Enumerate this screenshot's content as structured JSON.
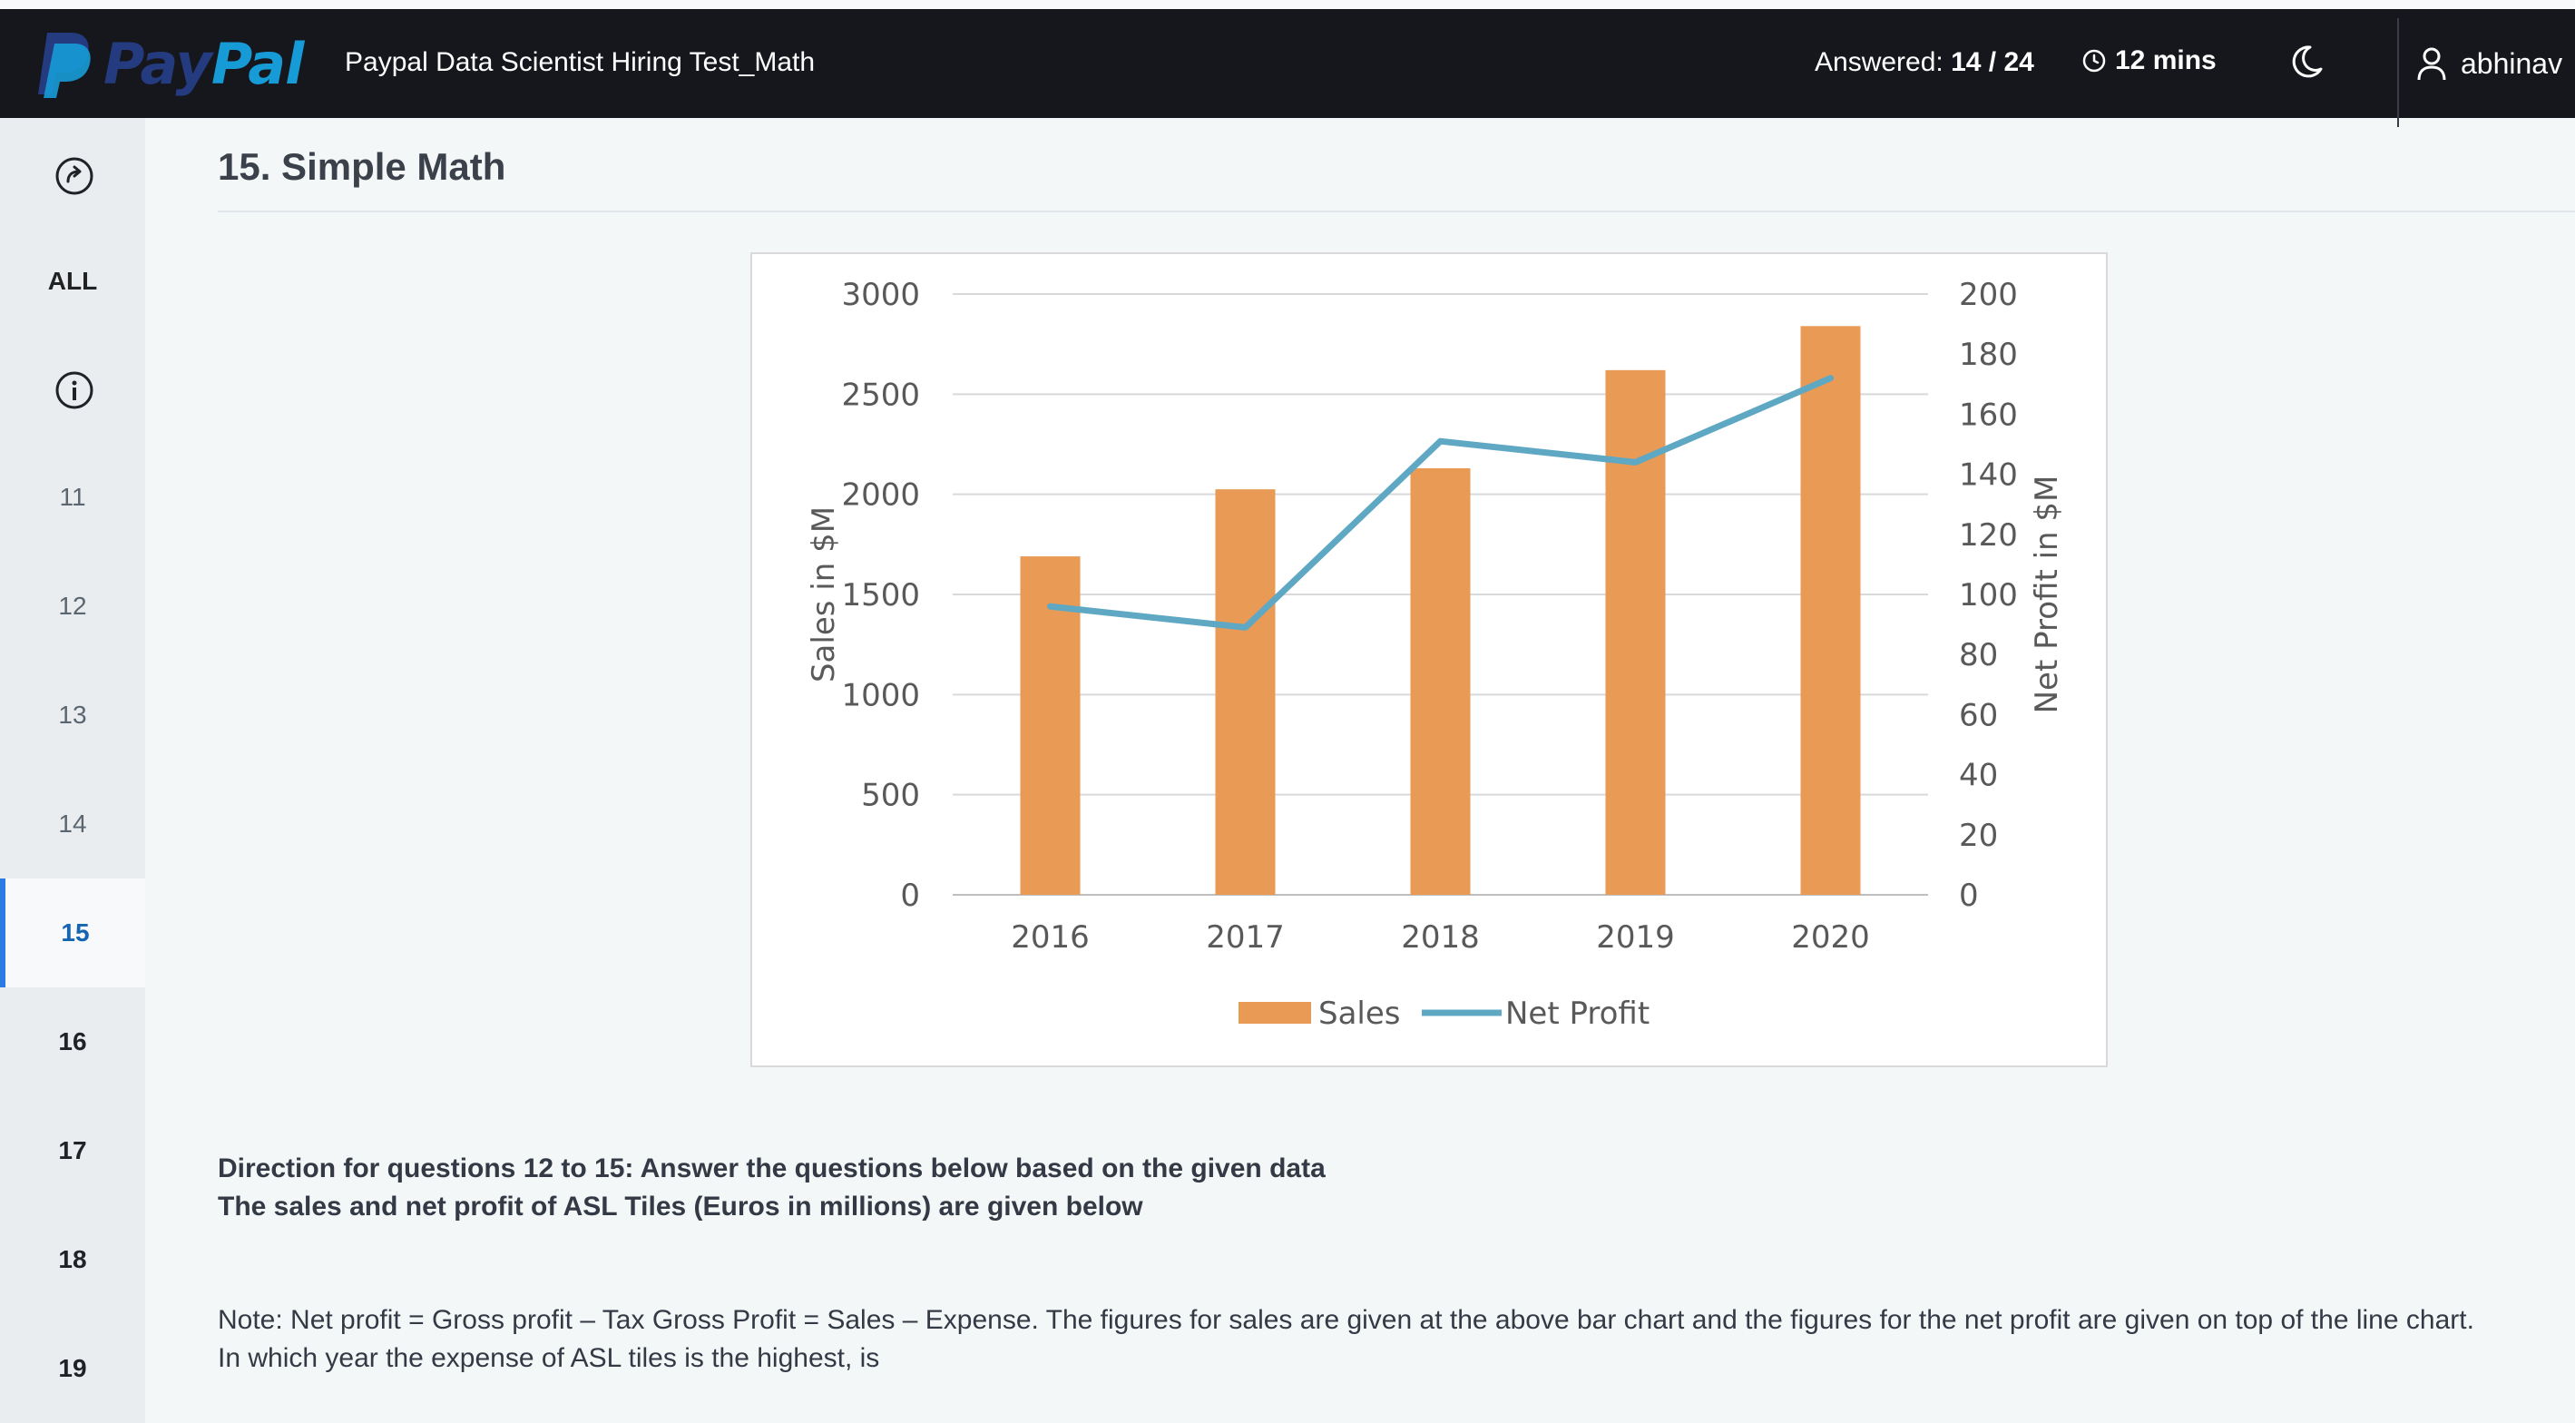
{
  "header": {
    "brand_pay": "Pay",
    "brand_pal": "Pal",
    "test_title": "Paypal Data Scientist Hiring Test_Math",
    "answered_label": "Answered:",
    "answered_value": "14 / 24",
    "timer": "12 mins",
    "username": "abhinav"
  },
  "sidebar": {
    "all_label": "ALL",
    "questions": [
      {
        "num": "11",
        "state": "answered"
      },
      {
        "num": "12",
        "state": "answered"
      },
      {
        "num": "13",
        "state": "answered"
      },
      {
        "num": "14",
        "state": "answered"
      },
      {
        "num": "15",
        "state": "active"
      },
      {
        "num": "16",
        "state": "unanswered"
      },
      {
        "num": "17",
        "state": "unanswered"
      },
      {
        "num": "18",
        "state": "unanswered"
      },
      {
        "num": "19",
        "state": "unanswered"
      }
    ]
  },
  "question": {
    "title": "15. Simple Math",
    "direction_1": "Direction for questions 12 to 15: Answer the questions below based on the given data",
    "direction_2": "The sales and net profit of ASL Tiles (Euros in millions) are given below",
    "note": "Note: Net profit = Gross profit – Tax Gross Profit = Sales – Expense. The figures for sales are given at the above bar chart and the figures for the net profit are given on top of the line chart.",
    "prompt": "In which year the expense of ASL tiles is the highest, is"
  },
  "chart_data": {
    "type": "bar",
    "categories": [
      "2016",
      "2017",
      "2018",
      "2019",
      "2020"
    ],
    "series": [
      {
        "name": "Sales",
        "type": "bar",
        "axis": "left",
        "values": [
          1690,
          2025,
          2130,
          2620,
          2840
        ],
        "color": "#e99a54"
      },
      {
        "name": "Net Profit",
        "type": "line",
        "axis": "right",
        "values": [
          96,
          89,
          151,
          144,
          172
        ],
        "color": "#5fa8c4"
      }
    ],
    "ylabel": "Sales in $M",
    "y2label": "Net Profit in $M",
    "ylim": [
      0,
      3000
    ],
    "y2lim": [
      0,
      200
    ],
    "yticks": [
      "0",
      "500",
      "1000",
      "1500",
      "2000",
      "2500",
      "3000"
    ],
    "y2ticks": [
      "0",
      "20",
      "40",
      "60",
      "80",
      "100",
      "120",
      "140",
      "160",
      "180",
      "200"
    ],
    "grid": true,
    "legend": "bottom-center"
  },
  "colors": {
    "header_bg": "#15171d",
    "accent": "#2c7be5",
    "bar": "#e99a54",
    "line": "#5fa8c4"
  }
}
